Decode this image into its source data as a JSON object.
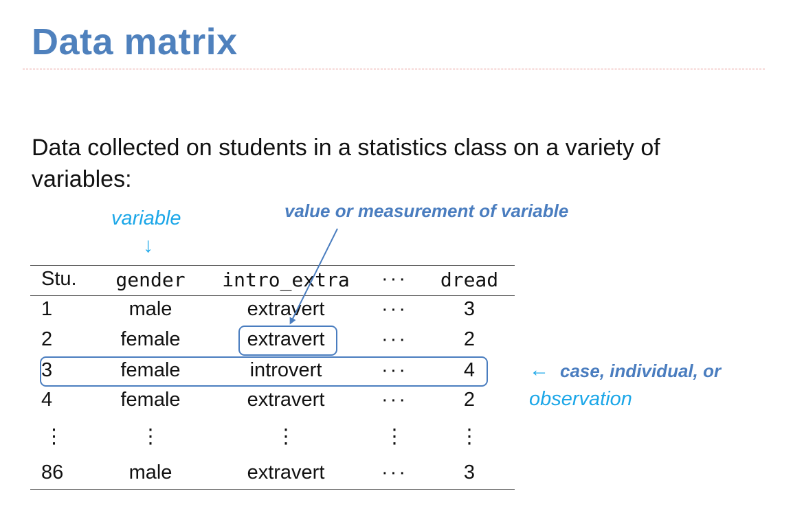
{
  "title": "Data matrix",
  "intro": "Data collected on students in a statistics class on a variety of variables:",
  "annotations": {
    "variable": "variable",
    "variable_arrow": "↓",
    "value": "value or measurement of variable",
    "case_arrow": "←",
    "case": "case, individual, or",
    "observation": "observation"
  },
  "table": {
    "headers": [
      "Stu.",
      "gender",
      "intro_extra",
      "···",
      "dread"
    ],
    "rows": [
      [
        "1",
        "male",
        "extravert",
        "···",
        "3"
      ],
      [
        "2",
        "female",
        "extravert",
        "···",
        "2"
      ],
      [
        "3",
        "female",
        "introvert",
        "···",
        "4"
      ],
      [
        "4",
        "female",
        "extravert",
        "···",
        "2"
      ],
      [
        "⋮",
        "⋮",
        "⋮",
        "⋮",
        "⋮"
      ],
      [
        "86",
        "male",
        "extravert",
        "···",
        "3"
      ]
    ]
  },
  "colors": {
    "title": "#4f81bd",
    "annotation_blue": "#1ca7e8",
    "annotation_bold": "#4a7dbf",
    "dashed_rule": "#e5908e"
  }
}
